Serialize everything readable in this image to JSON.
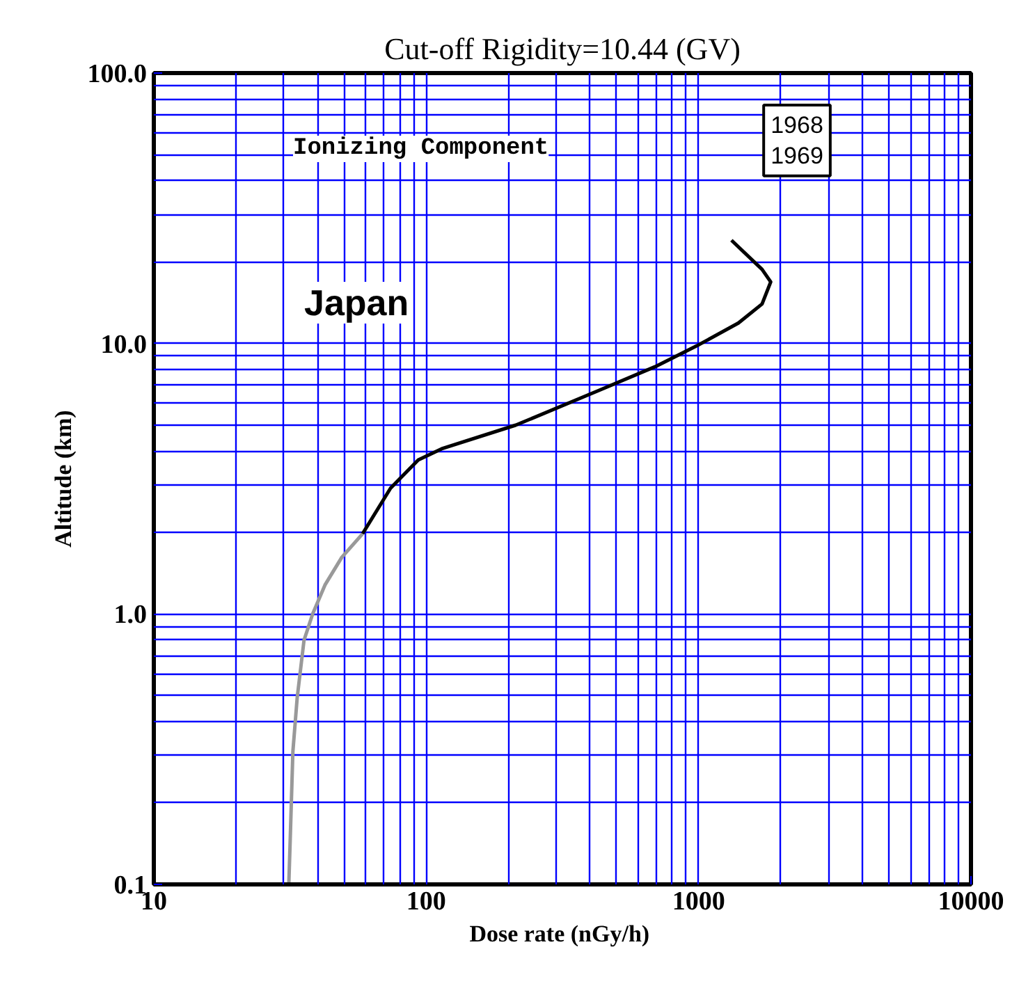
{
  "chart_data": {
    "type": "line",
    "title": "Cut-off Rigidity=10.44 (GV)",
    "xlabel": "Dose rate  (nGy/h)",
    "ylabel": "Altitude (km)",
    "log": "xy",
    "grid": true,
    "marker": "none",
    "line_style": "solid",
    "xlim": [
      10,
      10000
    ],
    "ylim": [
      0.1,
      100
    ],
    "xticks": [
      10,
      100,
      1000,
      10000
    ],
    "yticks": [
      {
        "value": 0.1,
        "label": "0.1"
      },
      {
        "value": 1,
        "label": "1.0"
      },
      {
        "value": 10,
        "label": "10.0"
      },
      {
        "value": 100,
        "label": "100.0"
      }
    ],
    "series": [
      {
        "color": "#999999",
        "x": [
          31.3,
          31.7,
          32.4,
          33.6,
          35.6,
          38.3,
          42.5,
          49,
          58.4
        ],
        "values": [
          0.1,
          0.15,
          0.31,
          0.49,
          0.8,
          1.0,
          1.28,
          1.62,
          1.98
        ]
      },
      {
        "color": "#000000",
        "x": [
          58.4,
          74,
          93.5,
          114,
          213,
          431,
          691,
          984,
          1400,
          1710,
          1840,
          1710,
          1320
        ],
        "values": [
          1.98,
          2.92,
          3.71,
          4.08,
          4.99,
          6.71,
          8.2,
          9.8,
          11.9,
          14.0,
          16.9,
          18.8,
          24.1
        ]
      }
    ],
    "annotations": [
      "Ionizing Component",
      "1968\n1969",
      "Japan"
    ]
  }
}
